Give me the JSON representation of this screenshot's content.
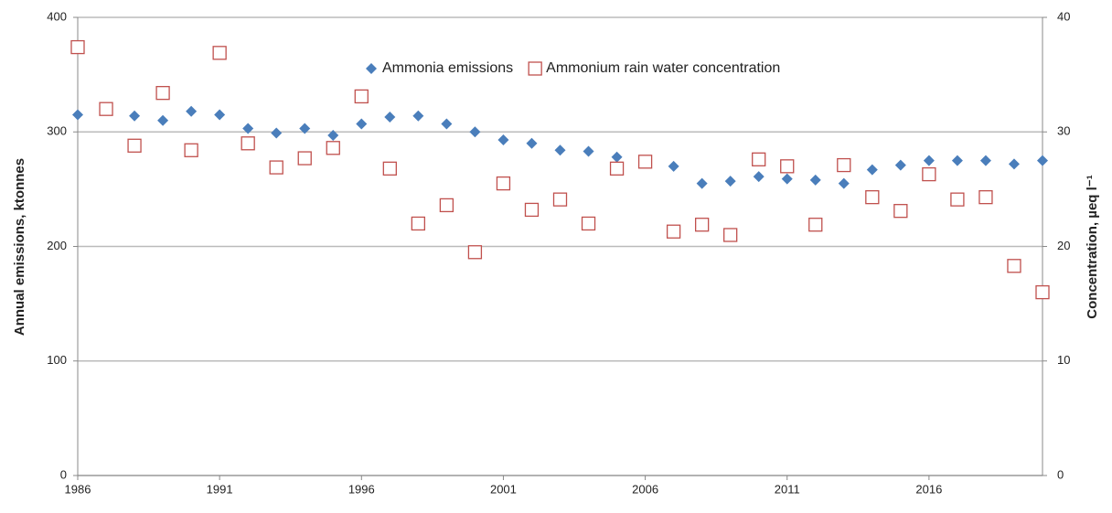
{
  "chart_data": {
    "type": "scatter",
    "y_label": "Annual emissions, ktonnes",
    "y2_label": "Concentration, µeq l⁻¹",
    "x": [
      1986,
      1987,
      1988,
      1989,
      1990,
      1991,
      1992,
      1993,
      1994,
      1995,
      1996,
      1997,
      1998,
      1999,
      2000,
      2001,
      2002,
      2003,
      2004,
      2005,
      2006,
      2007,
      2008,
      2009,
      2010,
      2011,
      2012,
      2013,
      2014,
      2015,
      2016,
      2017,
      2018,
      2019,
      2020
    ],
    "series": [
      {
        "name": "Ammonia emissions",
        "color": "#4a7ebb",
        "marker": "diamond",
        "values": [
          315,
          320,
          314,
          310,
          318,
          315,
          303,
          299,
          303,
          297,
          307,
          313,
          314,
          307,
          300,
          293,
          290,
          284,
          283,
          278,
          273,
          270,
          255,
          257,
          261,
          259,
          258,
          255,
          267,
          271,
          275,
          275,
          275,
          272,
          275
        ]
      },
      {
        "name": "Ammonium rain water concentration",
        "color": "#c0504d",
        "marker": "square",
        "axis": "y2",
        "values": [
          37.4,
          32.0,
          28.8,
          33.4,
          28.4,
          36.9,
          29.0,
          26.9,
          27.7,
          28.6,
          33.1,
          26.8,
          22.0,
          23.6,
          19.5,
          25.5,
          23.2,
          24.1,
          22.0,
          26.8,
          27.4,
          21.3,
          21.9,
          21.0,
          27.6,
          27.0,
          21.9,
          27.1,
          24.3,
          23.1,
          26.3,
          24.1,
          24.3,
          18.3,
          16.0
        ]
      }
    ],
    "xlim": [
      1986,
      2020
    ],
    "xticks": [
      1986,
      1991,
      1996,
      2001,
      2006,
      2011,
      2016
    ],
    "ylim": [
      0,
      400
    ],
    "yticks": [
      0,
      100,
      200,
      300,
      400
    ],
    "y2lim": [
      0,
      40
    ],
    "y2ticks": [
      0,
      10,
      20,
      30,
      40
    ],
    "grid": true,
    "legend": "top"
  }
}
